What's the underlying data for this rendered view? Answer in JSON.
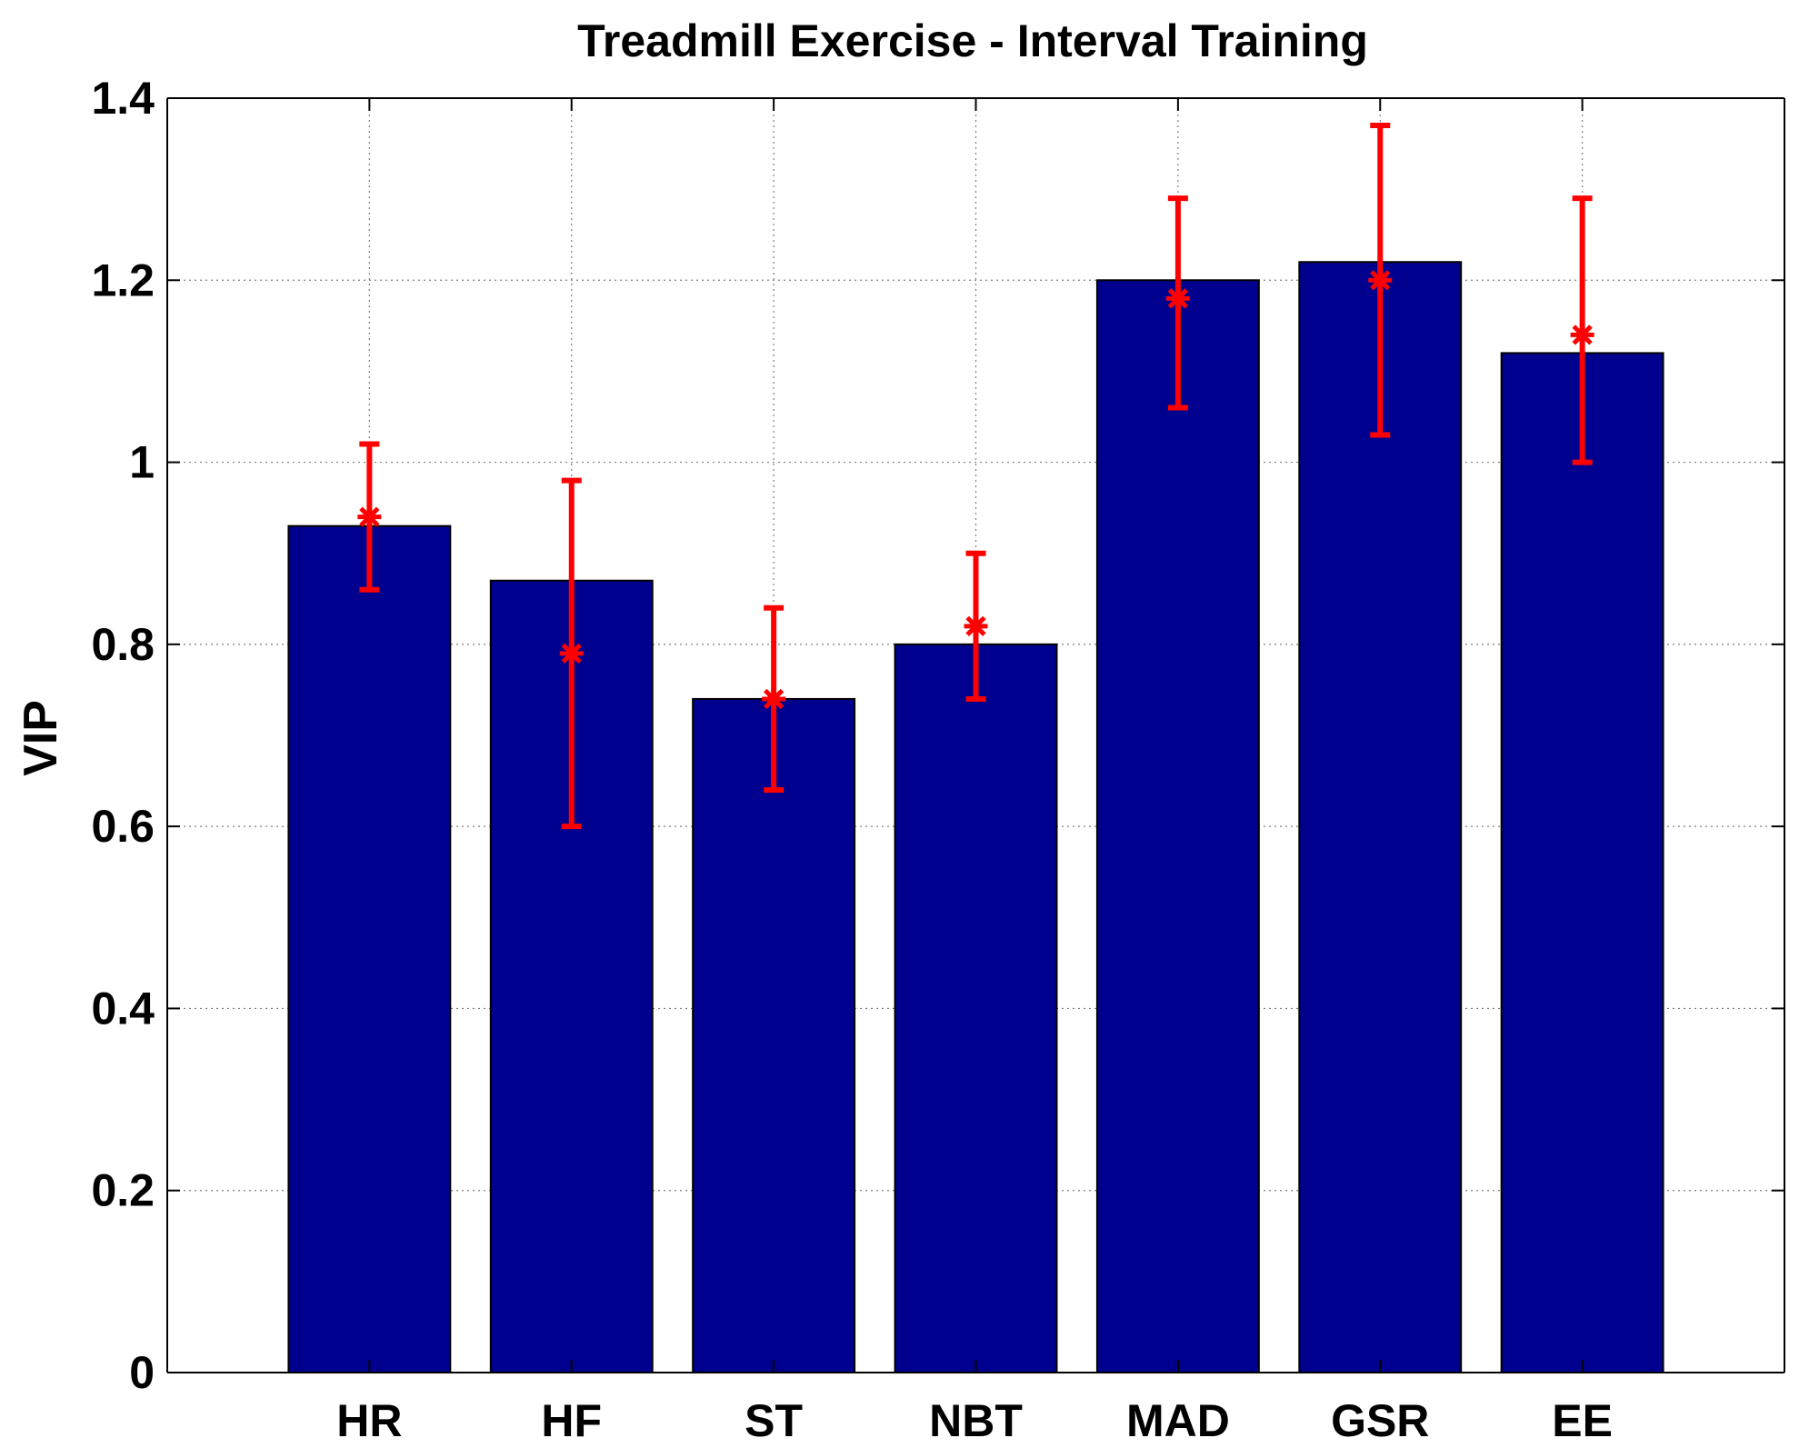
{
  "chart_data": {
    "type": "bar",
    "title": "Treadmill Exercise - Interval Training",
    "xlabel": "",
    "ylabel": "VIP",
    "categories": [
      "HR",
      "HF",
      "ST",
      "NBT",
      "MAD",
      "GSR",
      "EE"
    ],
    "values": [
      0.93,
      0.87,
      0.74,
      0.8,
      1.2,
      1.22,
      1.12
    ],
    "error_bars": {
      "means": [
        0.94,
        0.79,
        0.74,
        0.82,
        1.18,
        1.2,
        1.14
      ],
      "lower": [
        0.86,
        0.6,
        0.64,
        0.74,
        1.06,
        1.03,
        1.0
      ],
      "upper": [
        1.02,
        0.98,
        0.84,
        0.9,
        1.29,
        1.37,
        1.29
      ]
    },
    "ylim": [
      0,
      1.4
    ],
    "yticks": [
      0,
      0.2,
      0.4,
      0.6,
      0.8,
      1,
      1.2,
      1.4
    ],
    "ytick_labels": [
      "0",
      "0.2",
      "0.4",
      "0.6",
      "0.8",
      "1",
      "1.2",
      "1.4"
    ],
    "grid": true,
    "colors": {
      "bar": "#00008f",
      "bar_edge": "#000000",
      "error": "#ff0000",
      "grid": "#7f7f7f",
      "axis": "#000000"
    }
  }
}
